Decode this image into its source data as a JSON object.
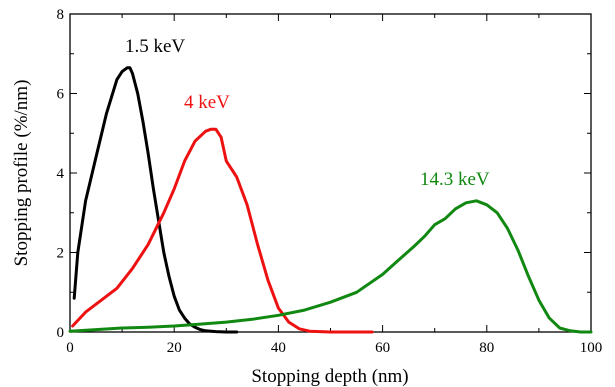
{
  "chart_data": {
    "type": "line",
    "title": "",
    "xlabel": "Stopping depth (nm)",
    "ylabel": "Stopping profile (%/nm)",
    "xlim": [
      0,
      100
    ],
    "ylim": [
      0,
      8
    ],
    "xticks": [
      0,
      20,
      40,
      60,
      80,
      100
    ],
    "yticks": [
      0,
      2,
      4,
      6,
      8
    ],
    "grid": false,
    "legend": "none",
    "series": [
      {
        "name": "1.5 keV",
        "color": "#000000",
        "x": [
          0.8,
          1.5,
          3,
          5,
          7,
          9,
          10,
          11,
          11.5,
          12,
          13,
          14,
          15,
          16,
          17,
          18,
          19,
          20,
          21,
          22,
          23,
          24,
          25,
          26,
          28,
          30,
          32
        ],
        "y": [
          0.85,
          2.0,
          3.3,
          4.4,
          5.5,
          6.35,
          6.55,
          6.65,
          6.65,
          6.5,
          6.0,
          5.3,
          4.5,
          3.6,
          2.8,
          2.0,
          1.4,
          0.9,
          0.55,
          0.35,
          0.2,
          0.12,
          0.06,
          0.03,
          0.01,
          0.0,
          0.0
        ]
      },
      {
        "name": "4 keV",
        "color": "#ee1111",
        "x": [
          0.5,
          3,
          6,
          9,
          12,
          15,
          18,
          20,
          22,
          24,
          26,
          27,
          28,
          29,
          30,
          32,
          34,
          36,
          38,
          40,
          42,
          44,
          46,
          50,
          58
        ],
        "y": [
          0.15,
          0.5,
          0.8,
          1.1,
          1.6,
          2.2,
          3.0,
          3.6,
          4.3,
          4.8,
          5.05,
          5.1,
          5.1,
          4.9,
          4.3,
          3.9,
          3.2,
          2.2,
          1.3,
          0.6,
          0.25,
          0.08,
          0.02,
          0.0,
          0.0
        ]
      },
      {
        "name": "14.3 keV",
        "color": "#118811",
        "x": [
          0,
          5,
          10,
          15,
          20,
          25,
          30,
          35,
          40,
          45,
          50,
          55,
          60,
          63,
          66,
          68,
          70,
          72,
          74,
          76,
          78,
          80,
          82,
          84,
          86,
          88,
          90,
          92,
          94,
          96,
          98,
          100
        ],
        "y": [
          0.02,
          0.06,
          0.1,
          0.12,
          0.15,
          0.2,
          0.25,
          0.32,
          0.42,
          0.55,
          0.75,
          1.0,
          1.45,
          1.8,
          2.15,
          2.4,
          2.7,
          2.85,
          3.1,
          3.25,
          3.3,
          3.2,
          3.0,
          2.6,
          2.05,
          1.4,
          0.8,
          0.35,
          0.1,
          0.03,
          0.0,
          0.0
        ]
      }
    ]
  }
}
